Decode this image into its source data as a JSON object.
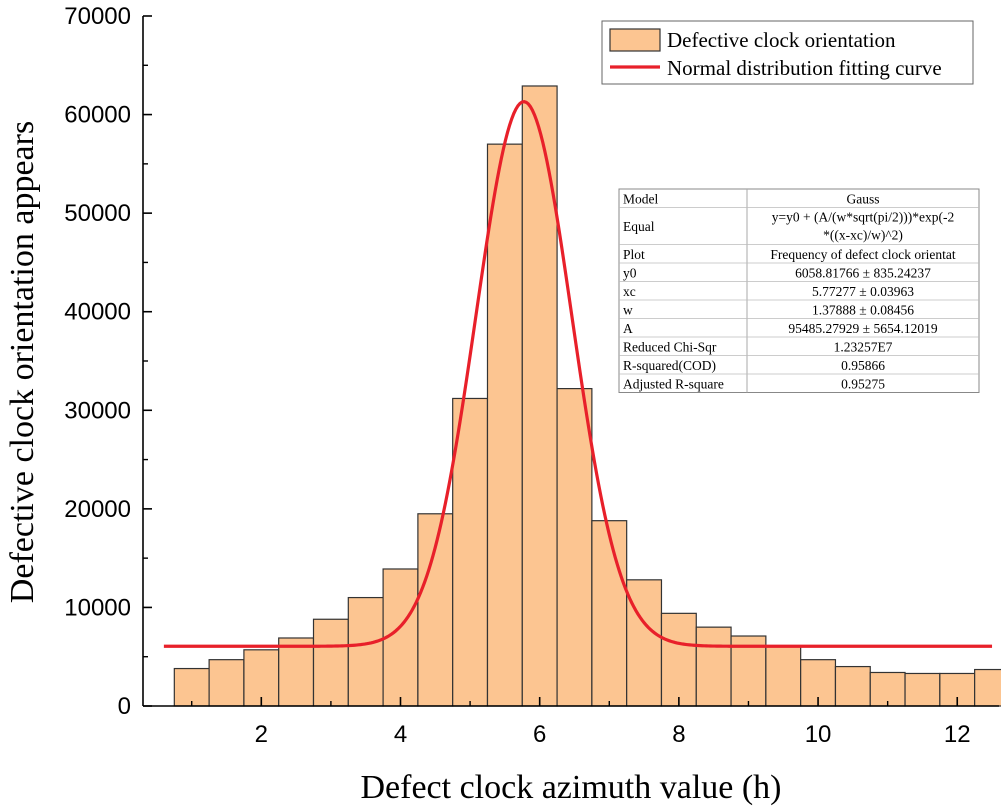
{
  "chart_data": {
    "type": "bar",
    "title": "",
    "xlabel": "Defect clock azimuth value (h)",
    "ylabel": "Defective clock orientation appears",
    "xlim": [
      0.3,
      12.6
    ],
    "ylim": [
      0,
      70000
    ],
    "xticks": [
      2,
      4,
      6,
      8,
      10,
      12
    ],
    "yticks": [
      0,
      10000,
      20000,
      30000,
      40000,
      50000,
      60000,
      70000
    ],
    "bin_width": 0.5,
    "x": [
      1.0,
      1.5,
      2.0,
      2.5,
      3.0,
      3.5,
      4.0,
      4.5,
      5.0,
      5.5,
      6.0,
      6.5,
      7.0,
      7.5,
      8.0,
      8.5,
      9.0,
      9.5,
      10.0,
      10.5,
      11.0,
      11.5,
      12.0,
      12.5
    ],
    "values": [
      3800,
      4700,
      5700,
      6900,
      8800,
      11000,
      13900,
      19500,
      31200,
      57000,
      62900,
      32200,
      18800,
      12800,
      9400,
      8000,
      7100,
      6100,
      4700,
      4000,
      3400,
      3300,
      3300,
      3700
    ],
    "series": [
      {
        "name": "Defective clock orientation",
        "color": "#FCC591"
      },
      {
        "name": "Normal distribution fitting curve",
        "color": "#E8202A",
        "fit_x_range": [
          0.6,
          12.5
        ]
      }
    ],
    "fit": {
      "model": "Gauss",
      "y0": 6058.81766,
      "xc": 5.77277,
      "w": 1.37888,
      "A": 95485.27929
    },
    "legend_position": "top-right"
  },
  "legend": {
    "hist_label": "Defective clock orientation",
    "curve_label": "Normal distribution fitting curve"
  },
  "fit_table": [
    {
      "key": "Model",
      "value": "Gauss"
    },
    {
      "key": "Equal",
      "value": "y=y0 + (A/(w*sqrt(pi/2)))*exp(-2",
      "value2": "*((x-xc)/w)^2)"
    },
    {
      "key": "Plot",
      "value": "Frequency of defect clock orientat"
    },
    {
      "key": "y0",
      "value": "6058.81766 ± 835.24237"
    },
    {
      "key": "xc",
      "value": "5.77277 ± 0.03963"
    },
    {
      "key": "w",
      "value": "1.37888 ± 0.08456"
    },
    {
      "key": "A",
      "value": "95485.27929 ± 5654.12019"
    },
    {
      "key": "Reduced Chi-Sqr",
      "value": "1.23257E7"
    },
    {
      "key": "R-squared(COD)",
      "value": "0.95866"
    },
    {
      "key": "Adjusted R-square",
      "value": "0.95275"
    }
  ],
  "colors": {
    "bar_fill": "#FCC591",
    "bar_stroke": "#333333",
    "curve": "#E8202A",
    "axis": "#000000"
  }
}
